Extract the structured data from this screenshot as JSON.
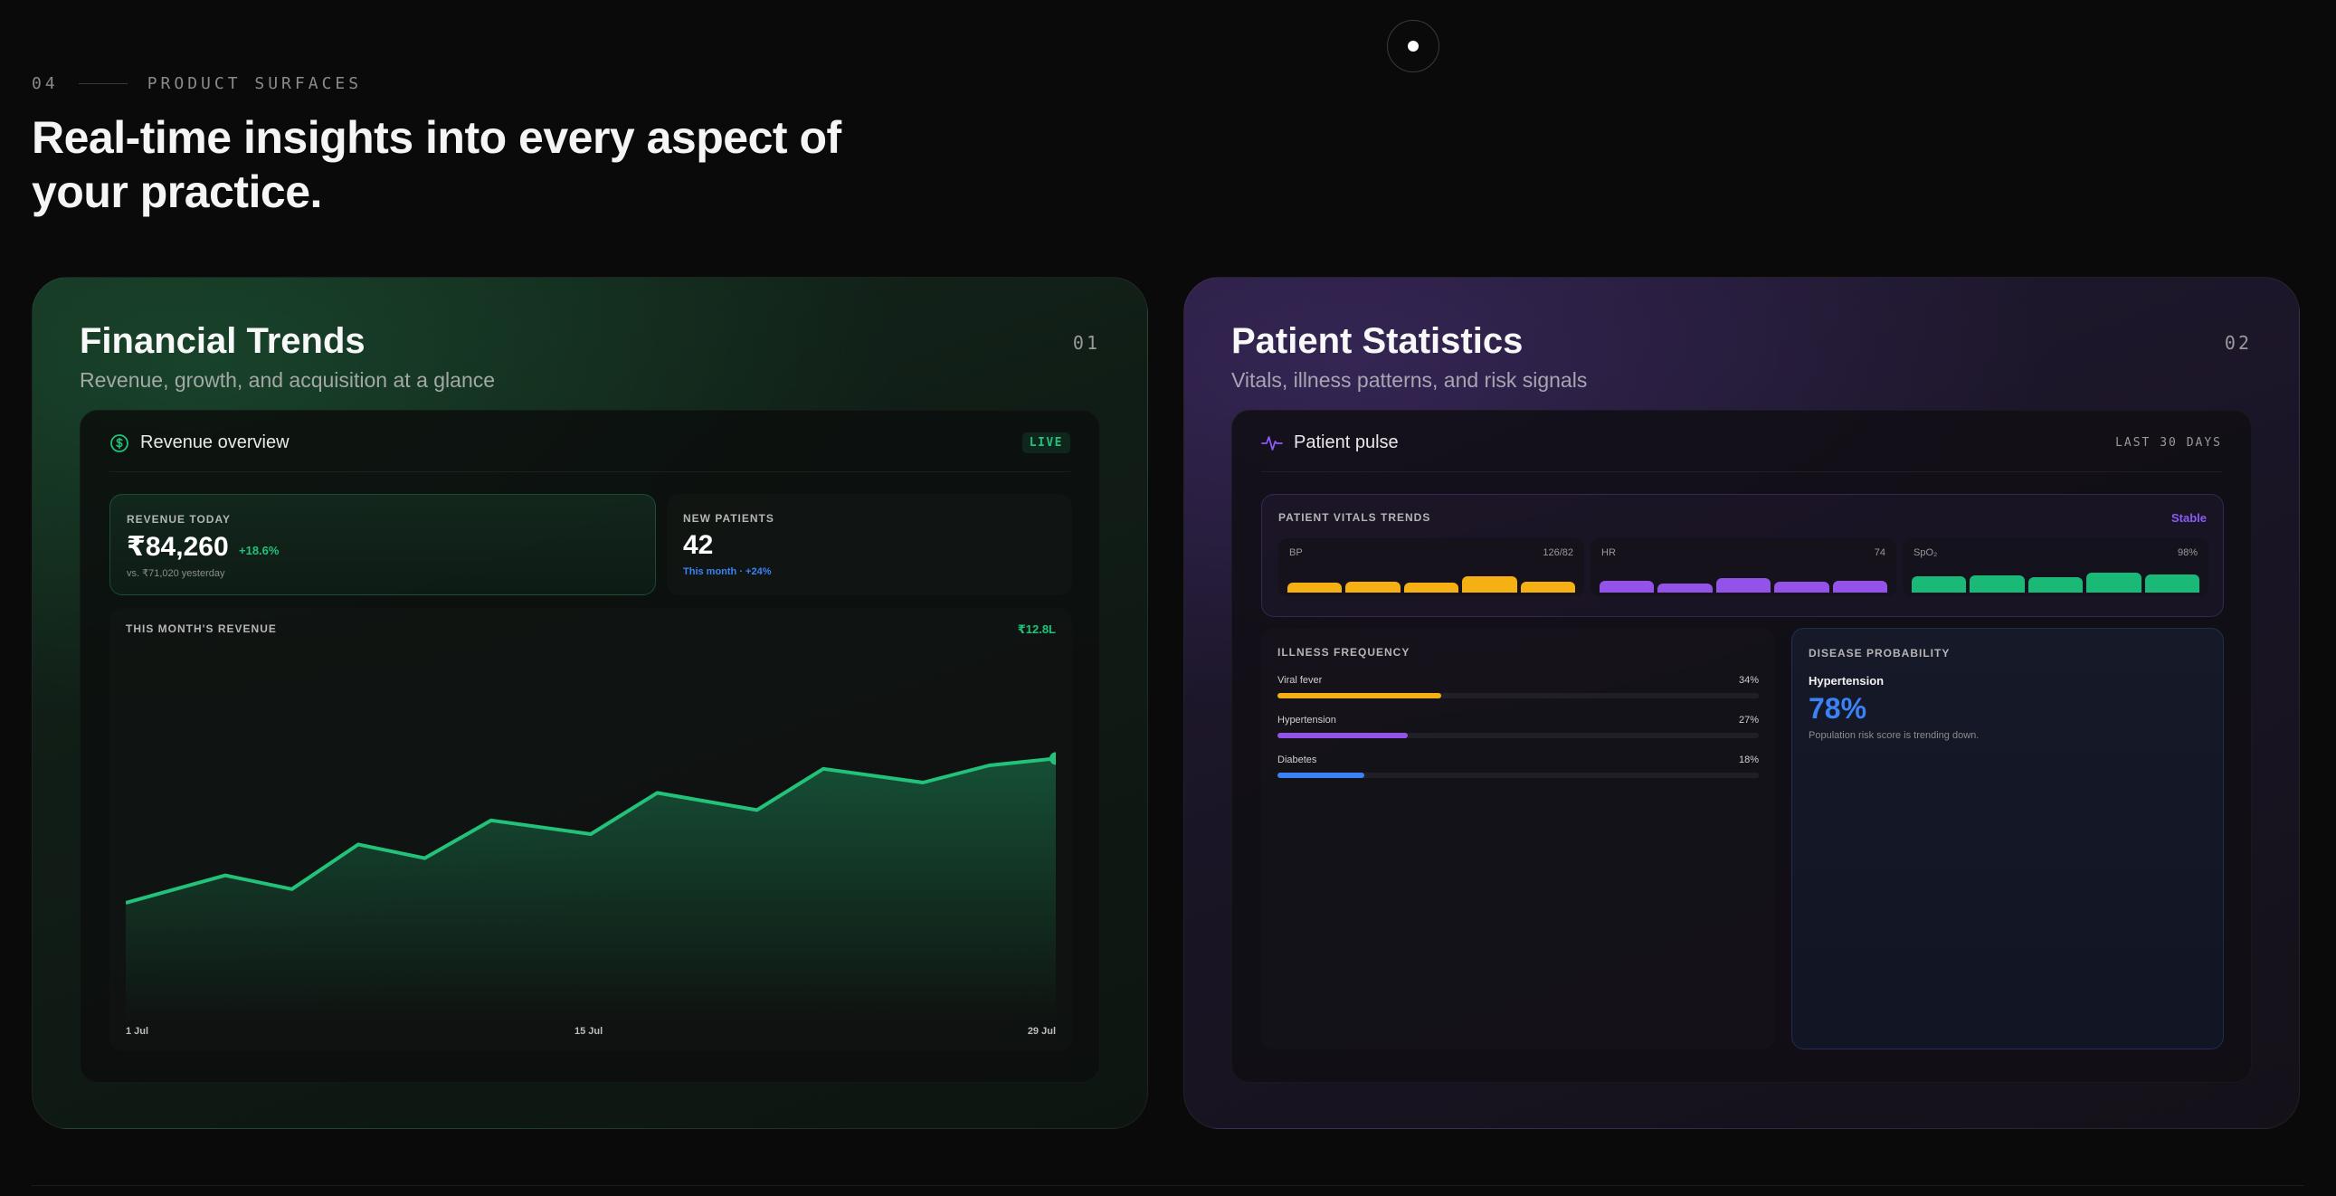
{
  "eyebrow": {
    "number": "04",
    "label": "PRODUCT SURFACES"
  },
  "headline": "Real-time insights into every aspect of your practice.",
  "financial": {
    "title": "Financial Trends",
    "subtitle": "Revenue, growth, and acquisition at a glance",
    "number": "01",
    "panel_title": "Revenue overview",
    "badge": "LIVE",
    "revenue_today": {
      "label": "REVENUE TODAY",
      "value": "₹84,260",
      "delta": "+18.6%",
      "note": "vs. ₹71,020 yesterday"
    },
    "new_patients": {
      "label": "NEW PATIENTS",
      "value": "42",
      "note": "This month · +24%"
    },
    "chart_label": "THIS MONTH'S REVENUE",
    "chart_total": "₹12.8L",
    "colors": {
      "accent": "#22c27a"
    }
  },
  "patient": {
    "title": "Patient Statistics",
    "subtitle": "Vitals, illness patterns, and risk signals",
    "number": "02",
    "panel_title": "Patient pulse",
    "range": "LAST 30 DAYS",
    "vitals": {
      "label": "PATIENT VITALS TRENDS",
      "status": "Stable",
      "items": [
        {
          "name": "BP",
          "value": "126/82",
          "color": "#f5b014",
          "levels": [
            0.45,
            0.5,
            0.45,
            0.75,
            0.5
          ]
        },
        {
          "name": "HR",
          "value": "74",
          "color": "#9353e8",
          "levels": [
            0.55,
            0.4,
            0.65,
            0.5,
            0.55
          ]
        },
        {
          "name": "SpO₂",
          "value": "98%",
          "color": "#1bb978",
          "levels": [
            0.75,
            0.8,
            0.72,
            0.9,
            0.82
          ]
        }
      ]
    },
    "illness": {
      "label": "ILLNESS FREQUENCY",
      "items": [
        {
          "name": "Viral fever",
          "pct": "34%",
          "value": 0.34,
          "color": "#f5b014"
        },
        {
          "name": "Hypertension",
          "pct": "27%",
          "value": 0.27,
          "color": "#9353e8"
        },
        {
          "name": "Diabetes",
          "pct": "18%",
          "value": 0.18,
          "color": "#3b82f6"
        }
      ]
    },
    "disease": {
      "label": "DISEASE PROBABILITY",
      "name": "Hypertension",
      "pct": "78%",
      "note": "Population risk score is trending down."
    }
  },
  "chart_data": {
    "type": "area",
    "title": "THIS MONTH'S REVENUE",
    "x_ticks": [
      "1 Jul",
      "15 Jul",
      "29 Jul"
    ],
    "x_range": [
      1,
      29
    ],
    "x": [
      1,
      4,
      6,
      8,
      10,
      12,
      15,
      17,
      20,
      22,
      25,
      27,
      29
    ],
    "values": [
      0.3,
      0.38,
      0.34,
      0.47,
      0.43,
      0.54,
      0.5,
      0.62,
      0.57,
      0.69,
      0.65,
      0.7,
      0.72
    ],
    "ylim": [
      0,
      1
    ],
    "color": "#22c27a"
  }
}
